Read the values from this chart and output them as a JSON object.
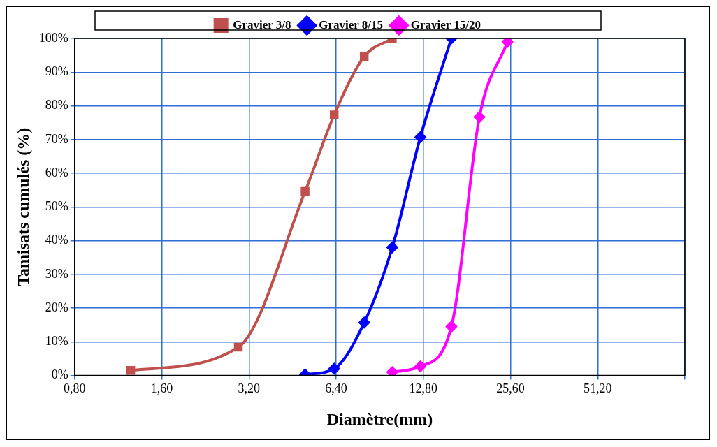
{
  "chart_data": {
    "type": "line",
    "xlabel": "Diamètre(mm)",
    "ylabel": "Tamisats cumulés (%)",
    "log": "x",
    "xlim": [
      0.8,
      102.4
    ],
    "xticks": [
      {
        "value": 0.8,
        "label": "0,80"
      },
      {
        "value": 1.6,
        "label": "1,60"
      },
      {
        "value": 3.2,
        "label": "3,20"
      },
      {
        "value": 6.4,
        "label": "6,40"
      },
      {
        "value": 12.8,
        "label": "12,80"
      },
      {
        "value": 25.6,
        "label": "25,60"
      },
      {
        "value": 51.2,
        "label": "51,20"
      },
      {
        "value": 102.4,
        "label": null
      }
    ],
    "ylim": [
      0,
      100
    ],
    "yticks": [
      {
        "value": 0,
        "label": "0%"
      },
      {
        "value": 10,
        "label": "10%"
      },
      {
        "value": 20,
        "label": "20%"
      },
      {
        "value": 30,
        "label": "30%"
      },
      {
        "value": 40,
        "label": "40%"
      },
      {
        "value": 50,
        "label": "50%"
      },
      {
        "value": 60,
        "label": "60%"
      },
      {
        "value": 70,
        "label": "70%"
      },
      {
        "value": 80,
        "label": "80%"
      },
      {
        "value": 90,
        "label": "90%"
      },
      {
        "value": 100,
        "label": "100%"
      }
    ],
    "grid": true,
    "legend": "top",
    "series": [
      {
        "name": "Gravier 3/8",
        "color": "#c0504d",
        "marker": "square",
        "x": [
          1.25,
          2.94,
          5,
          6.3,
          8,
          10
        ],
        "values": [
          1.5,
          8.4,
          54.6,
          77.3,
          94.6,
          100
        ]
      },
      {
        "name": "Gravier 8/15",
        "color": "#0000ff",
        "marker": "diamond",
        "x": [
          5,
          6.3,
          8,
          10,
          12.5,
          16
        ],
        "values": [
          0.3,
          2,
          15.7,
          38,
          70.7,
          100
        ]
      },
      {
        "name": "Gravier 15/20",
        "color": "#ff00ff",
        "marker": "diamond",
        "x": [
          10,
          12.5,
          16,
          20,
          25
        ],
        "values": [
          1,
          2.7,
          14.5,
          76.7,
          99
        ]
      }
    ]
  }
}
